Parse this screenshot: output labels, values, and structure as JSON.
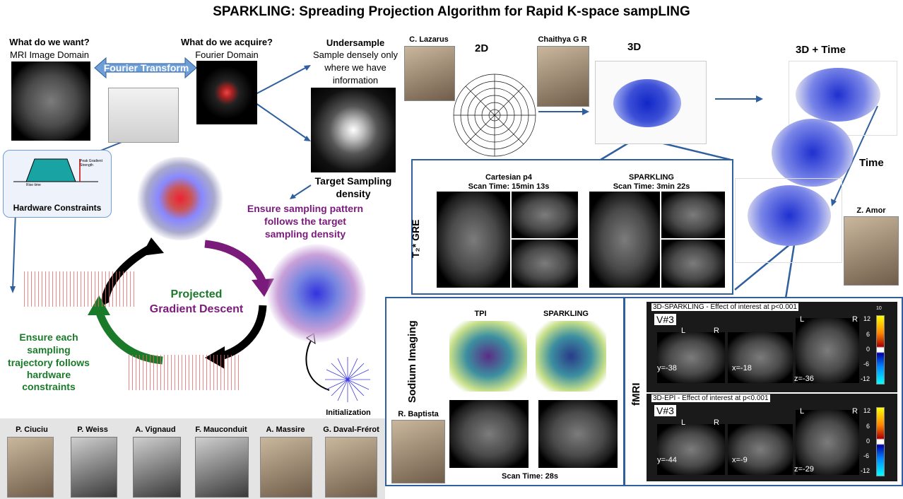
{
  "title": "SPARKLING: Spreading Projection Algorithm for Rapid K-space sampLING",
  "left": {
    "want_q": "What do we want?",
    "want_a": "MRI Image Domain",
    "acquire_q": "What do we acquire?",
    "acquire_a": "Fourier Domain",
    "fourier_transform": "Fourier Transform",
    "hardware_constraints": "Hardware Constraints",
    "peak_gradient": "Peak Gradient Strength",
    "rise_time": "Rise time"
  },
  "undersample": {
    "title": "Undersample",
    "desc1": "Sample densely only",
    "desc2": "where we have",
    "desc3": "information",
    "target1": "Target Sampling",
    "target2": "density"
  },
  "cycle": {
    "ensure_density1": "Ensure sampling pattern",
    "ensure_density2": "follows the target",
    "ensure_density3": "sampling density",
    "projected": "Projected",
    "gradient_descent": "Gradient Descent",
    "ensure_traj1": "Ensure each",
    "ensure_traj2": "sampling",
    "ensure_traj3": "trajectory follows",
    "ensure_traj4": "hardware",
    "ensure_traj5": "constraints",
    "initialization": "Initialization"
  },
  "people": {
    "lazarus": "C. Lazarus",
    "chaithya": "Chaithya G R",
    "amor": "Z. Amor",
    "baptista": "R. Baptista",
    "ciuciu": "P. Ciuciu",
    "weiss": "P. Weiss",
    "vignaud": "A. Vignaud",
    "mauconduit": "F. Mauconduit",
    "massire": "A. Massire",
    "daval": "G. Daval-Frérot"
  },
  "dims": {
    "d2": "2D",
    "d3": "3D",
    "d3t": "3D + Time",
    "time": "Time"
  },
  "gre": {
    "label": "T₂* GRE",
    "cart_title": "Cartesian p4",
    "cart_time": "Scan Time: 15min 13s",
    "spark_title": "SPARKLING",
    "spark_time": "Scan Time: 3min 22s"
  },
  "sodium": {
    "label": "Sodium Imaging",
    "tpi": "TPI",
    "sparkling": "SPARKLING",
    "scan_time": "Scan Time: 28s"
  },
  "fmri": {
    "label": "fMRI",
    "top_caption": "3D-SPARKLING - Effect of interest at p<0.001",
    "bottom_caption": "3D-EPI - Effect of interest at p<0.001",
    "v3": "V#3",
    "L": "L",
    "R": "R",
    "top_y": "y=-38",
    "top_x": "x=-18",
    "top_z": "z=-36",
    "bot_y": "y=-44",
    "bot_x": "x=-9",
    "bot_z": "z=-29",
    "cb_12": "12",
    "cb_6": "6",
    "cb_0": "0",
    "cb_m6": "-6",
    "cb_m12": "-12",
    "cb_10": "10"
  },
  "colors": {
    "panel_border": "#2f5f9e",
    "green": "#1a7a2a",
    "purple": "#7a1a7a",
    "arrow_blue": "#2f5f9e"
  }
}
